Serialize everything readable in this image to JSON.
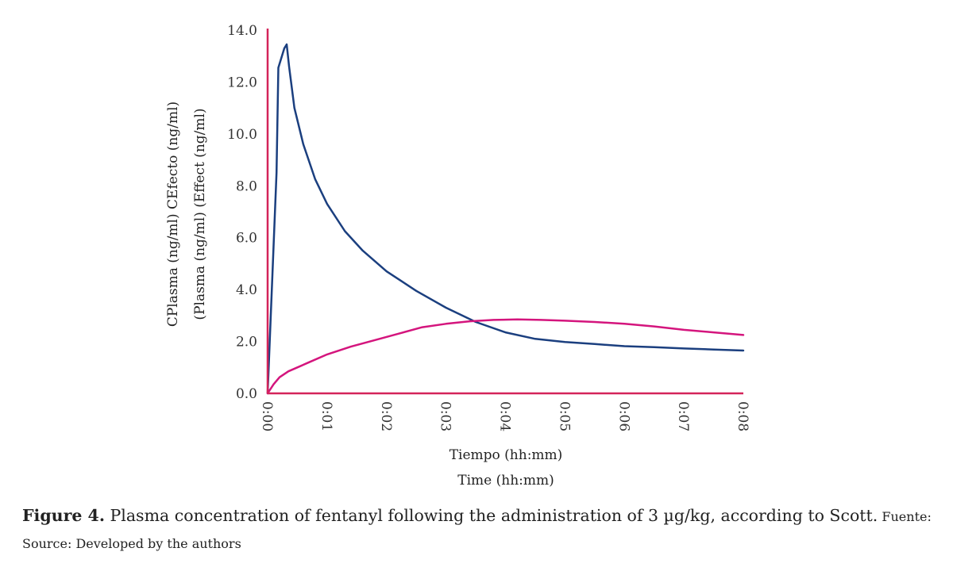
{
  "chart_data": {
    "type": "line",
    "title": "",
    "xlabel_lines": [
      "Tiempo (hh:mm)",
      "Time (hh:mm)"
    ],
    "ylabel_lines": [
      "CPlasma (ng/ml) CEfecto (ng/ml)",
      "(Plasma (ng/ml) (Effect (ng/ml)"
    ],
    "x_ticks": [
      "0:00",
      "0:01",
      "0:02",
      "0:03",
      "0:04",
      "0:05",
      "0:06",
      "0:07",
      "0:08"
    ],
    "y_ticks": [
      "0.0",
      "2.0",
      "4.0",
      "6.0",
      "8.0",
      "10.0",
      "12.0",
      "14.0"
    ],
    "xlim": [
      0,
      8
    ],
    "ylim": [
      0,
      14
    ],
    "legend": "none",
    "grid": false,
    "axis_color": "#d4245a",
    "series": [
      {
        "color": "#1b3f7f",
        "x": [
          0,
          0.15,
          0.18,
          0.28,
          0.32,
          0.36,
          0.45,
          0.6,
          0.8,
          1.0,
          1.3,
          1.6,
          2.0,
          2.5,
          3.0,
          3.5,
          4.0,
          4.5,
          5.0,
          5.5,
          6.0,
          6.5,
          7.0,
          7.5,
          8.0
        ],
        "y": [
          0,
          8.5,
          12.55,
          13.3,
          13.45,
          12.6,
          11.0,
          9.6,
          8.25,
          7.3,
          6.25,
          5.5,
          4.7,
          3.95,
          3.3,
          2.75,
          2.35,
          2.1,
          1.98,
          1.9,
          1.82,
          1.78,
          1.73,
          1.69,
          1.65
        ]
      },
      {
        "color": "#d4157d",
        "x": [
          0,
          0.1,
          0.2,
          0.35,
          0.5,
          0.7,
          1.0,
          1.4,
          1.8,
          2.2,
          2.6,
          3.0,
          3.4,
          3.8,
          4.2,
          4.6,
          5.0,
          5.5,
          6.0,
          6.5,
          7.0,
          7.5,
          8.0
        ],
        "y": [
          0,
          0.35,
          0.62,
          0.85,
          1.0,
          1.2,
          1.5,
          1.8,
          2.05,
          2.3,
          2.55,
          2.68,
          2.78,
          2.83,
          2.85,
          2.83,
          2.8,
          2.75,
          2.68,
          2.58,
          2.45,
          2.35,
          2.25
        ]
      }
    ]
  },
  "caption": {
    "label": "Figure 4.",
    "text": " Plasma concentration of fentanyl following the administration of 3 µg/kg, according to Scott.",
    "source": " Fuente: Source: Developed by the authors"
  }
}
